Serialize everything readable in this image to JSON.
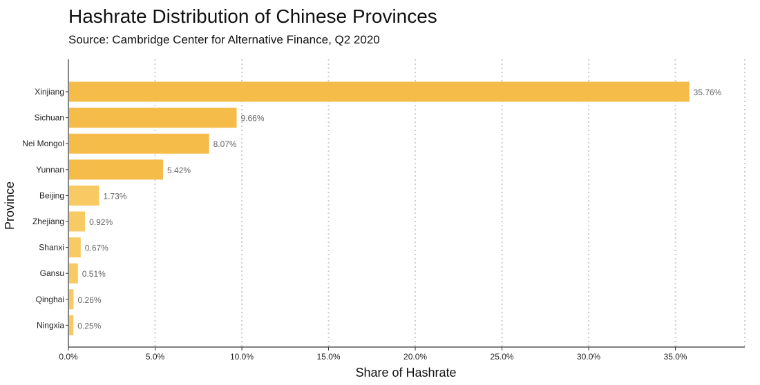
{
  "header": {
    "title": "Hashrate Distribution of Chinese Provinces",
    "subtitle": "Source: Cambridge Center for Alternative Finance, Q2 2020"
  },
  "colors": {
    "bar": "#f5bc4a",
    "bar_small": "#f8ca63",
    "grid": "#cccccc",
    "axis": "#333333",
    "value_label": "#666666"
  },
  "chart_data": {
    "type": "bar",
    "orientation": "horizontal",
    "title": "Hashrate Distribution of Chinese Provinces",
    "subtitle": "Source: Cambridge Center for Alternative Finance, Q2 2020",
    "xlabel": "Share of Hashrate",
    "ylabel": "Province",
    "categories": [
      "Xinjiang",
      "Sichuan",
      "Nei Mongol",
      "Yunnan",
      "Beijing",
      "Zhejiang",
      "Shanxi",
      "Gansu",
      "Qinghai",
      "Ningxia"
    ],
    "values": [
      35.76,
      9.66,
      8.07,
      5.42,
      1.73,
      0.92,
      0.67,
      0.51,
      0.26,
      0.25
    ],
    "value_labels": [
      "35.76%",
      "9.66%",
      "8.07%",
      "5.42%",
      "1.73%",
      "0.92%",
      "0.67%",
      "0.51%",
      "0.26%",
      "0.25%"
    ],
    "xlim": [
      0,
      39
    ],
    "xticks": [
      0,
      5,
      10,
      15,
      20,
      25,
      30,
      35
    ],
    "xtick_labels": [
      "0.0%",
      "5.0%",
      "10.0%",
      "15.0%",
      "20.0%",
      "25.0%",
      "30.0%",
      "35.0%"
    ],
    "grid": "vertical dotted",
    "legend": "none"
  }
}
